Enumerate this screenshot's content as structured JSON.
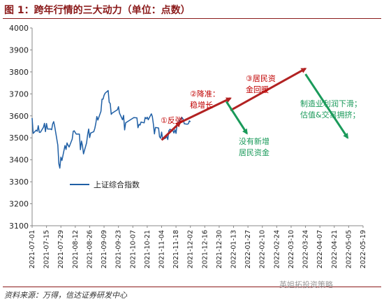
{
  "header": {
    "title": "图 1：跨年行情的三大动力（单位：点数）"
  },
  "footer": {
    "source": "资料来源：万得，信达证券研发中心",
    "watermark": "英姐拓投资策略"
  },
  "colors": {
    "series": "#1F5FA5",
    "red_arrow": "#B22222",
    "green_arrow": "#1A9A5A",
    "title": "#8B1A1A"
  },
  "chart_data": {
    "type": "line",
    "title": "",
    "xlabel": "",
    "ylabel": "",
    "ylim": [
      3100,
      4000
    ],
    "yticks": [
      3100,
      3200,
      3300,
      3400,
      3500,
      3600,
      3700,
      3800,
      3900,
      4000
    ],
    "x_range": [
      "2021-07-01",
      "2022-05-19"
    ],
    "xticks": [
      "2021-07-01",
      "2021-07-15",
      "2021-07-29",
      "2021-08-12",
      "2021-08-26",
      "2021-09-09",
      "2021-09-23",
      "2021-10-07",
      "2021-10-21",
      "2021-11-04",
      "2021-11-18",
      "2021-12-02",
      "2021-12-16",
      "2021-12-30",
      "2022-01-13",
      "2022-01-27",
      "2022-02-10",
      "2022-02-24",
      "2022-03-10",
      "2022-03-24",
      "2022-04-07",
      "2022-04-21",
      "2022-05-05",
      "2022-05-19"
    ],
    "grid": false,
    "legend": {
      "position": "center-left",
      "entries": [
        "上证综合指数"
      ]
    },
    "series": [
      {
        "name": "上证综合指数",
        "points": [
          [
            "2021-07-01",
            3590
          ],
          [
            "2021-07-02",
            3520
          ],
          [
            "2021-07-05",
            3535
          ],
          [
            "2021-07-06",
            3530
          ],
          [
            "2021-07-07",
            3555
          ],
          [
            "2021-07-08",
            3525
          ],
          [
            "2021-07-09",
            3525
          ],
          [
            "2021-07-12",
            3548
          ],
          [
            "2021-07-13",
            3566
          ],
          [
            "2021-07-14",
            3528
          ],
          [
            "2021-07-15",
            3565
          ],
          [
            "2021-07-16",
            3540
          ],
          [
            "2021-07-19",
            3540
          ],
          [
            "2021-07-20",
            3537
          ],
          [
            "2021-07-21",
            3563
          ],
          [
            "2021-07-22",
            3574
          ],
          [
            "2021-07-23",
            3551
          ],
          [
            "2021-07-26",
            3467
          ],
          [
            "2021-07-27",
            3382
          ],
          [
            "2021-07-28",
            3362
          ],
          [
            "2021-07-29",
            3412
          ],
          [
            "2021-07-30",
            3397
          ],
          [
            "2021-08-02",
            3465
          ],
          [
            "2021-08-03",
            3447
          ],
          [
            "2021-08-04",
            3477
          ],
          [
            "2021-08-05",
            3466
          ],
          [
            "2021-08-06",
            3458
          ],
          [
            "2021-08-09",
            3494
          ],
          [
            "2021-08-10",
            3530
          ],
          [
            "2021-08-11",
            3532
          ],
          [
            "2021-08-12",
            3524
          ],
          [
            "2021-08-13",
            3517
          ],
          [
            "2021-08-16",
            3517
          ],
          [
            "2021-08-17",
            3446
          ],
          [
            "2021-08-18",
            3485
          ],
          [
            "2021-08-19",
            3465
          ],
          [
            "2021-08-20",
            3427
          ],
          [
            "2021-08-23",
            3477
          ],
          [
            "2021-08-24",
            3514
          ],
          [
            "2021-08-25",
            3540
          ],
          [
            "2021-08-26",
            3501
          ],
          [
            "2021-08-27",
            3522
          ],
          [
            "2021-08-30",
            3528
          ],
          [
            "2021-08-31",
            3543
          ],
          [
            "2021-09-01",
            3567
          ],
          [
            "2021-09-02",
            3597
          ],
          [
            "2021-09-03",
            3581
          ],
          [
            "2021-09-06",
            3621
          ],
          [
            "2021-09-07",
            3676
          ],
          [
            "2021-09-08",
            3676
          ],
          [
            "2021-09-09",
            3693
          ],
          [
            "2021-09-10",
            3703
          ],
          [
            "2021-09-13",
            3715
          ],
          [
            "2021-09-14",
            3662
          ],
          [
            "2021-09-15",
            3656
          ],
          [
            "2021-09-16",
            3607
          ],
          [
            "2021-09-17",
            3613
          ],
          [
            "2021-09-22",
            3628
          ],
          [
            "2021-09-23",
            3642
          ],
          [
            "2021-09-24",
            3613
          ],
          [
            "2021-09-27",
            3582
          ],
          [
            "2021-09-28",
            3602
          ],
          [
            "2021-09-29",
            3536
          ],
          [
            "2021-09-30",
            3568
          ],
          [
            "2021-10-08",
            3592
          ],
          [
            "2021-10-11",
            3591
          ],
          [
            "2021-10-12",
            3546
          ],
          [
            "2021-10-13",
            3561
          ],
          [
            "2021-10-14",
            3558
          ],
          [
            "2021-10-15",
            3572
          ],
          [
            "2021-10-18",
            3568
          ],
          [
            "2021-10-19",
            3593
          ],
          [
            "2021-10-20",
            3587
          ],
          [
            "2021-10-21",
            3594
          ],
          [
            "2021-10-22",
            3582
          ],
          [
            "2021-10-25",
            3609
          ],
          [
            "2021-10-26",
            3597
          ],
          [
            "2021-10-27",
            3562
          ],
          [
            "2021-10-28",
            3518
          ],
          [
            "2021-10-29",
            3547
          ],
          [
            "2021-11-01",
            3545
          ],
          [
            "2021-11-02",
            3505
          ],
          [
            "2021-11-03",
            3498
          ],
          [
            "2021-11-04",
            3526
          ],
          [
            "2021-11-05",
            3492
          ],
          [
            "2021-11-08",
            3499
          ],
          [
            "2021-11-09",
            3508
          ],
          [
            "2021-11-10",
            3492
          ],
          [
            "2021-11-11",
            3532
          ],
          [
            "2021-11-12",
            3539
          ],
          [
            "2021-11-15",
            3533
          ],
          [
            "2021-11-16",
            3522
          ],
          [
            "2021-11-17",
            3537
          ],
          [
            "2021-11-18",
            3520
          ],
          [
            "2021-11-19",
            3560
          ],
          [
            "2021-11-22",
            3582
          ],
          [
            "2021-11-23",
            3589
          ],
          [
            "2021-11-24",
            3592
          ],
          [
            "2021-11-25",
            3584
          ],
          [
            "2021-11-26",
            3564
          ],
          [
            "2021-11-29",
            3562
          ],
          [
            "2021-11-30",
            3564
          ],
          [
            "2021-12-01",
            3577
          ],
          [
            "2021-12-02",
            3573
          ]
        ]
      }
    ],
    "arrows": [
      {
        "color": "red",
        "from": [
          "2021-11-04",
          3490
        ],
        "to": [
          "2021-11-22",
          3570
        ]
      },
      {
        "color": "red",
        "from": [
          "2021-11-22",
          3570
        ],
        "to": [
          "2022-01-10",
          3680
        ]
      },
      {
        "color": "red",
        "from": [
          "2022-01-10",
          3625
        ],
        "to": [
          "2022-03-24",
          3815
        ]
      },
      {
        "color": "green",
        "from": [
          "2022-01-06",
          3665
        ],
        "to": [
          "2022-01-26",
          3520
        ]
      },
      {
        "color": "green",
        "from": [
          "2022-03-24",
          3790
        ],
        "to": [
          "2022-05-04",
          3500
        ]
      }
    ],
    "annotations": [
      {
        "lines": [
          "①反弹"
        ],
        "color": "red"
      },
      {
        "lines": [
          "②降准：",
          "稳增长"
        ],
        "color": "red"
      },
      {
        "lines": [
          "③居民资",
          "金回暖"
        ],
        "color": "red"
      },
      {
        "lines": [
          "没有新增",
          "居民资金"
        ],
        "color": "green"
      },
      {
        "lines": [
          "制造业利润下滑；",
          "估值&交易拥挤；"
        ],
        "color": "green"
      }
    ]
  }
}
